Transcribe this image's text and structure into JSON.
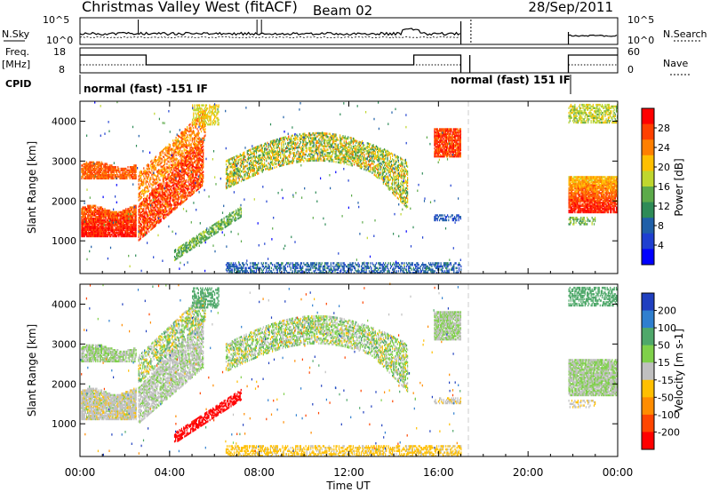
{
  "header": {
    "station": "Christmas Valley West (fitACF)",
    "beam": "Beam 02",
    "date": "28/Sep/2011"
  },
  "top_panels": {
    "nsky_label": "N.Sky",
    "nsky_ticks": [
      "10^5",
      "10^0"
    ],
    "nsearch_label": "N.Search",
    "nsearch_ticks": [
      "10^5",
      "10^0"
    ],
    "freq_label": "Freq.",
    "freq_unit": "[MHz]",
    "freq_ticks": [
      "18",
      "8"
    ],
    "nave_label": "Nave",
    "nave_ticks": [
      "60",
      "0"
    ],
    "cpid_label": "CPID",
    "cpid_segments": [
      {
        "label": "normal (fast) -151 IF"
      },
      {
        "label": "normal (fast) 151 IF"
      }
    ]
  },
  "chart_data": [
    {
      "type": "heatmap",
      "name": "power",
      "ylabel": "Slant Range [km]",
      "xlabel": "Time UT",
      "ylim": [
        180,
        4500
      ],
      "yticks": [
        1000,
        2000,
        3000,
        4000
      ],
      "xlim_hours": [
        0,
        24
      ],
      "xtick_labels": [
        "00:00",
        "04:00",
        "08:00",
        "12:00",
        "16:00",
        "20:00",
        "00:00"
      ],
      "colorbar": {
        "label": "Power [dB]",
        "ticks": [
          "28",
          "24",
          "20",
          "16",
          "12",
          "8",
          "4"
        ],
        "colors": [
          "#ff0000",
          "#ff4000",
          "#ff7f00",
          "#ffbf00",
          "#bfd62e",
          "#5caa4a",
          "#2e8b57",
          "#1f5fa8",
          "#1e3fd0",
          "#0000ff"
        ]
      }
    },
    {
      "type": "heatmap",
      "name": "velocity",
      "ylabel": "Slant Range [km]",
      "xlabel": "Time UT",
      "ylim": [
        180,
        4500
      ],
      "yticks": [
        1000,
        2000,
        3000,
        4000
      ],
      "xlim_hours": [
        0,
        24
      ],
      "xtick_labels": [
        "00:00",
        "04:00",
        "08:00",
        "12:00",
        "16:00",
        "20:00",
        "00:00"
      ],
      "colorbar": {
        "label": "Velocity [m s-1]",
        "ticks": [
          "200",
          "100",
          "50",
          "15",
          "-15",
          "-50",
          "-100",
          "-200"
        ],
        "colors": [
          "#1f3fbf",
          "#2f7fcf",
          "#4fa86a",
          "#7fd04a",
          "#c0c0c0",
          "#ffbf00",
          "#ff8c00",
          "#ff4500",
          "#ff0000"
        ]
      }
    }
  ]
}
